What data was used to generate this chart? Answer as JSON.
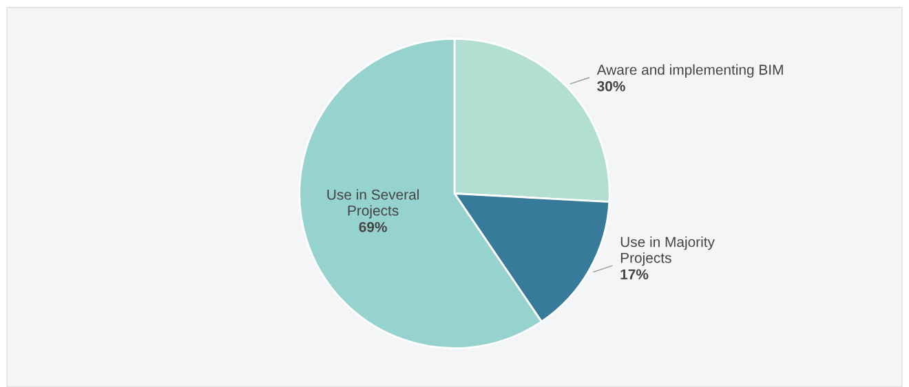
{
  "chart_data": {
    "type": "pie",
    "categories": [
      "Aware and implementing BIM",
      "Use in Majority\nProjects",
      "Use in Several\nProjects"
    ],
    "values": [
      30,
      17,
      69
    ],
    "value_labels": [
      "30%",
      "17%",
      "69%"
    ],
    "colors": [
      "#b3dfd3",
      "#387a99",
      "#96d3cf"
    ]
  }
}
